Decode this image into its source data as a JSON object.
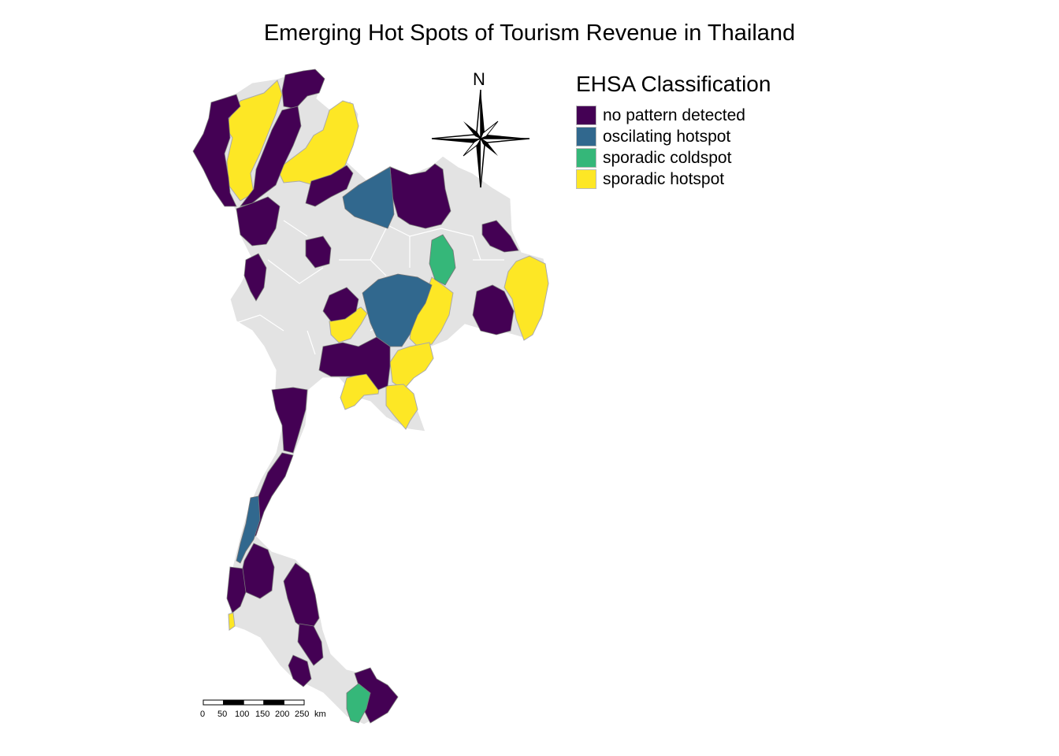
{
  "title": "Emerging Hot Spots of Tourism Revenue in Thailand",
  "legend": {
    "title": "EHSA Classification",
    "items": [
      {
        "label": "no pattern detected",
        "color": "#440154"
      },
      {
        "label": "oscilating hotspot",
        "color": "#31688E"
      },
      {
        "label": "sporadic coldspot",
        "color": "#35B779"
      },
      {
        "label": "sporadic hotspot",
        "color": "#FDE725"
      }
    ]
  },
  "no_data_color": "#E3E3E3",
  "north_arrow": {
    "label": "N",
    "icon": "compass-rose-icon"
  },
  "scale_bar": {
    "ticks": [
      "0",
      "50",
      "100",
      "150",
      "200",
      "250"
    ],
    "unit": "km"
  }
}
